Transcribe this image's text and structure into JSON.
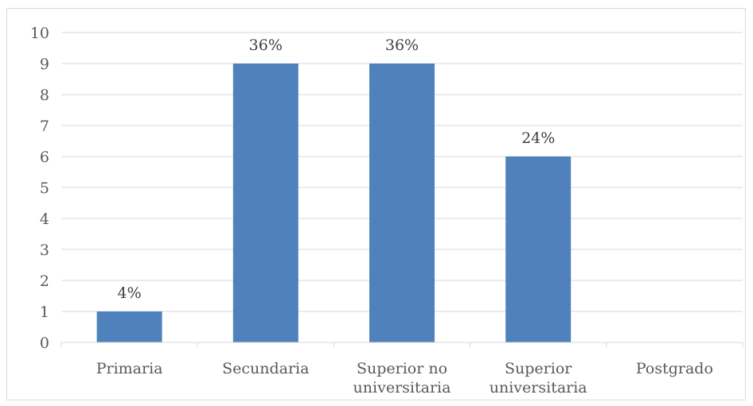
{
  "chart_data": {
    "type": "bar",
    "title": "",
    "xlabel": "",
    "ylabel": "",
    "categories": [
      [
        "Primaria"
      ],
      [
        "Secundaria"
      ],
      [
        "Superior no",
        "universitaria"
      ],
      [
        "Superior",
        "universitaria"
      ],
      [
        "Postgrado"
      ]
    ],
    "values": [
      1,
      9,
      9,
      6,
      0
    ],
    "data_labels": [
      "4%",
      "36%",
      "36%",
      "24%",
      ""
    ],
    "ylim": [
      0,
      10
    ],
    "yticks": [
      "0",
      "1",
      "2",
      "3",
      "4",
      "5",
      "6",
      "7",
      "8",
      "9",
      "10"
    ],
    "grid": true,
    "legend": "none",
    "bar_color": "#4f81bd",
    "grid_color": "#d9d9d9"
  }
}
